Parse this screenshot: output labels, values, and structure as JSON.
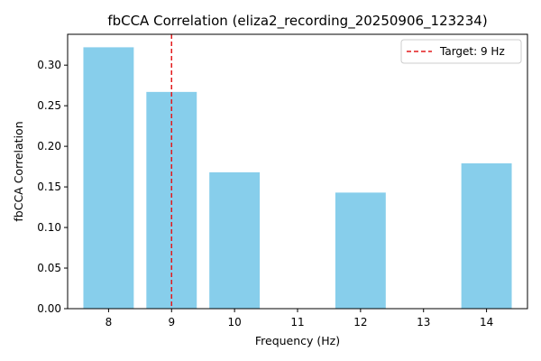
{
  "chart_data": {
    "type": "bar",
    "title": "fbCCA Correlation (eliza2_recording_20250906_123234)",
    "xlabel": "Frequency (Hz)",
    "ylabel": "fbCCA Correlation",
    "x_ticks": [
      8,
      9,
      10,
      11,
      12,
      13,
      14
    ],
    "xlim": [
      7.35,
      14.65
    ],
    "ylim": [
      0,
      0.338
    ],
    "y_ticks": [
      0.0,
      0.05,
      0.1,
      0.15,
      0.2,
      0.25,
      0.3
    ],
    "bar_width": 0.8,
    "bars": [
      {
        "x": 8,
        "value": 0.322
      },
      {
        "x": 9,
        "value": 0.267
      },
      {
        "x": 10,
        "value": 0.168
      },
      {
        "x": 12,
        "value": 0.143
      },
      {
        "x": 14,
        "value": 0.179
      }
    ],
    "target_line": {
      "x": 9,
      "label": "Target: 9 Hz"
    },
    "legend_position": "top-right",
    "grid": false,
    "colors": {
      "bar": "#87ceeb",
      "target": "#e31a1c"
    }
  }
}
